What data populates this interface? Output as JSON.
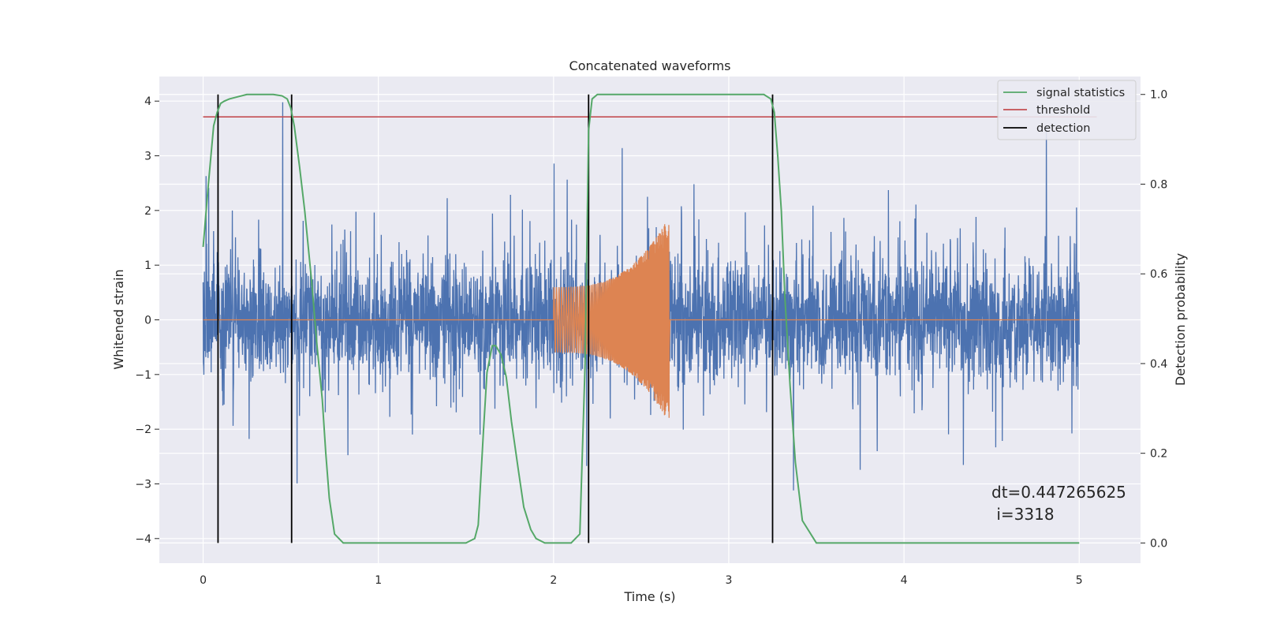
{
  "chart_data": {
    "type": "line",
    "title": "Concatenated waveforms",
    "xlabel": "Time (s)",
    "ylabel": "Whitened strain",
    "y2label": "Detection probability",
    "xlim": [
      -0.25,
      5.35
    ],
    "ylim": [
      -4.45,
      4.45
    ],
    "y2lim": [
      -0.045,
      1.04
    ],
    "xticks": [
      0,
      1,
      2,
      3,
      4,
      5
    ],
    "yticks": [
      -4,
      -3,
      -2,
      -1,
      0,
      1,
      2,
      3,
      4
    ],
    "y2ticks": [
      0.0,
      0.2,
      0.4,
      0.6,
      0.8,
      1.0
    ],
    "y2ticklabels": [
      "0.0",
      "0.2",
      "0.4",
      "0.6",
      "0.8",
      "1.0"
    ],
    "grid": true,
    "legend_position": "top-right",
    "colors": {
      "background": "#eaeaf2",
      "strain": "#4c72b0",
      "injected": "#dd8452",
      "signal_statistics": "#55a868",
      "threshold": "#c44e52",
      "detection": "#000000"
    },
    "series": [
      {
        "name": "signal statistics",
        "axis": "right",
        "x": [
          0,
          0.03,
          0.06,
          0.08,
          0.1,
          0.12,
          0.15,
          0.2,
          0.25,
          0.3,
          0.35,
          0.4,
          0.45,
          0.48,
          0.5,
          0.52,
          0.55,
          0.58,
          0.6,
          0.62,
          0.65,
          0.68,
          0.7,
          0.72,
          0.75,
          0.8,
          1.0,
          1.2,
          1.5,
          1.55,
          1.57,
          1.6,
          1.62,
          1.65,
          1.67,
          1.7,
          1.73,
          1.76,
          1.8,
          1.83,
          1.87,
          1.9,
          1.95,
          2.0,
          2.1,
          2.15,
          2.18,
          2.2,
          2.22,
          2.25,
          2.3,
          2.5,
          3.0,
          3.2,
          3.24,
          3.26,
          3.28,
          3.3,
          3.32,
          3.35,
          3.38,
          3.42,
          3.5,
          3.8,
          4.2,
          5.0
        ],
        "values": [
          0.66,
          0.8,
          0.93,
          0.96,
          0.98,
          0.985,
          0.99,
          0.995,
          1.0,
          1.0,
          1.0,
          1.0,
          0.997,
          0.99,
          0.97,
          0.93,
          0.84,
          0.74,
          0.66,
          0.58,
          0.44,
          0.32,
          0.2,
          0.1,
          0.02,
          0.0,
          0.0,
          0.0,
          0.0,
          0.01,
          0.04,
          0.25,
          0.38,
          0.44,
          0.44,
          0.42,
          0.37,
          0.27,
          0.16,
          0.08,
          0.03,
          0.01,
          0.0,
          0.0,
          0.0,
          0.02,
          0.4,
          0.92,
          0.99,
          1.0,
          1.0,
          1.0,
          1.0,
          1.0,
          0.99,
          0.96,
          0.86,
          0.74,
          0.55,
          0.35,
          0.18,
          0.05,
          0.0,
          0.0,
          0.0,
          0.0
        ]
      },
      {
        "name": "threshold",
        "axis": "right",
        "x": [
          0,
          5.1
        ],
        "values": [
          0.95,
          0.95
        ]
      },
      {
        "name": "detection",
        "axis": "right",
        "type": "vlines",
        "x": [
          0.085,
          0.505,
          2.2,
          3.25
        ],
        "ymin": 0.0,
        "ymax": 1.0
      },
      {
        "axis": "left",
        "type": "noise",
        "x_range": [
          0,
          5
        ],
        "typical_range": [
          -1.1,
          1.1
        ],
        "max": 3.98,
        "min": -4.08
      },
      {
        "axis": "left",
        "type": "chirp",
        "x_range": [
          2.0,
          2.66
        ],
        "start_amplitude": 0.6,
        "peak_amplitude": 1.9,
        "min": -2.1
      }
    ],
    "annotation": {
      "line1": "dt=0.447265625",
      "line2": " i=3318"
    }
  }
}
